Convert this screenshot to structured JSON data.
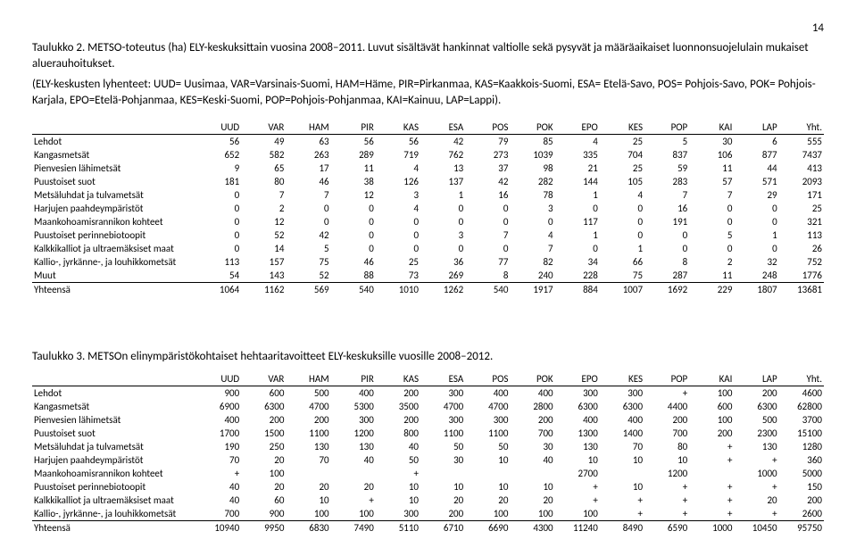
{
  "page_number": "14",
  "caption1": "Taulukko 2. METSO-toteutus (ha) ELY-keskuksittain vuosina 2008–2011. Luvut sisältävät hankinnat valtiolle sekä pysyvät ja määräaikaiset luonnonsuojelulain mukaiset aluerauhoitukset.",
  "explain1": "(ELY-keskusten lyhenteet: UUD= Uusimaa, VAR=Varsinais-Suomi, HAM=Häme, PIR=Pirkanmaa, KAS=Kaakkois-Suomi, ESA= Etelä-Savo, POS= Pohjois-Savo, POK= Pohjois-Karjala, EPO=Etelä-Pohjanmaa, KES=Keski-Suomi, POP=Pohjois-Pohjanmaa, KAI=Kainuu, LAP=Lappi).",
  "headers": [
    "",
    "UUD",
    "VAR",
    "HAM",
    "PIR",
    "KAS",
    "ESA",
    "POS",
    "POK",
    "EPO",
    "KES",
    "POP",
    "KAI",
    "LAP",
    "Yht."
  ],
  "table1_rows": [
    [
      "Lehdot",
      "56",
      "49",
      "63",
      "56",
      "56",
      "42",
      "79",
      "85",
      "4",
      "25",
      "5",
      "30",
      "6",
      "555"
    ],
    [
      "Kangasmetsät",
      "652",
      "582",
      "263",
      "289",
      "719",
      "762",
      "273",
      "1039",
      "335",
      "704",
      "837",
      "106",
      "877",
      "7437"
    ],
    [
      "Pienvesien lähimetsät",
      "9",
      "65",
      "17",
      "11",
      "4",
      "13",
      "37",
      "98",
      "21",
      "25",
      "59",
      "11",
      "44",
      "413"
    ],
    [
      "Puustoiset suot",
      "181",
      "80",
      "46",
      "38",
      "126",
      "137",
      "42",
      "282",
      "144",
      "105",
      "283",
      "57",
      "571",
      "2093"
    ],
    [
      "Metsäluhdat ja tulvametsät",
      "0",
      "7",
      "7",
      "12",
      "3",
      "1",
      "16",
      "78",
      "1",
      "4",
      "7",
      "7",
      "29",
      "171"
    ],
    [
      "Harjujen paahdeympäristöt",
      "0",
      "2",
      "0",
      "0",
      "4",
      "0",
      "0",
      "3",
      "0",
      "0",
      "16",
      "0",
      "0",
      "25"
    ],
    [
      "Maankohoamisrannikon kohteet",
      "0",
      "12",
      "0",
      "0",
      "0",
      "0",
      "0",
      "0",
      "117",
      "0",
      "191",
      "0",
      "0",
      "321"
    ],
    [
      "Puustoiset perinnebiotoopit",
      "0",
      "52",
      "42",
      "0",
      "0",
      "3",
      "7",
      "4",
      "1",
      "0",
      "0",
      "5",
      "1",
      "113"
    ],
    [
      "Kalkkikalliot ja ultraemäksiset maat",
      "0",
      "14",
      "5",
      "0",
      "0",
      "0",
      "0",
      "7",
      "0",
      "1",
      "0",
      "0",
      "0",
      "26"
    ],
    [
      "Kallio-, jyrkänne-, ja louhikkometsät",
      "113",
      "157",
      "75",
      "46",
      "25",
      "36",
      "77",
      "82",
      "34",
      "66",
      "8",
      "2",
      "32",
      "752"
    ],
    [
      "Muut",
      "54",
      "143",
      "52",
      "88",
      "73",
      "269",
      "8",
      "240",
      "228",
      "75",
      "287",
      "11",
      "248",
      "1776"
    ]
  ],
  "table1_total": [
    "Yhteensä",
    "1064",
    "1162",
    "569",
    "540",
    "1010",
    "1262",
    "540",
    "1917",
    "884",
    "1007",
    "1692",
    "229",
    "1807",
    "13681"
  ],
  "caption2": "Taulukko 3. METSOn elinympäristökohtaiset hehtaaritavoitteet ELY-keskuksille vuosille 2008–2012.",
  "table2_rows": [
    [
      "Lehdot",
      "900",
      "600",
      "500",
      "400",
      "200",
      "300",
      "400",
      "400",
      "300",
      "300",
      "+",
      "100",
      "200",
      "4600"
    ],
    [
      "Kangasmetsät",
      "6900",
      "6300",
      "4700",
      "5300",
      "3500",
      "4700",
      "4700",
      "2800",
      "6300",
      "6300",
      "4400",
      "600",
      "6300",
      "62800"
    ],
    [
      "Pienvesien lähimetsät",
      "400",
      "200",
      "200",
      "300",
      "200",
      "300",
      "300",
      "200",
      "400",
      "400",
      "200",
      "100",
      "500",
      "3700"
    ],
    [
      "Puustoiset suot",
      "1700",
      "1500",
      "1100",
      "1200",
      "800",
      "1100",
      "1100",
      "700",
      "1300",
      "1400",
      "700",
      "200",
      "2300",
      "15100"
    ],
    [
      "Metsäluhdat ja tulvametsät",
      "190",
      "250",
      "130",
      "130",
      "40",
      "50",
      "50",
      "30",
      "130",
      "70",
      "80",
      "+",
      "130",
      "1280"
    ],
    [
      "Harjujen paahdeympäristöt",
      "70",
      "20",
      "70",
      "40",
      "50",
      "30",
      "10",
      "40",
      "10",
      "10",
      "10",
      "+",
      "+",
      "360"
    ],
    [
      "Maankohoamisrannikon kohteet",
      "+",
      "100",
      "",
      "",
      "+",
      "",
      "",
      "",
      "2700",
      "",
      "1200",
      "",
      "1000",
      "5000"
    ],
    [
      "Puustoiset perinnebiotoopit",
      "40",
      "20",
      "20",
      "20",
      "10",
      "10",
      "10",
      "10",
      "+",
      "10",
      "+",
      "+",
      "+",
      "150"
    ],
    [
      "Kalkkikalliot ja ultraemäksiset maat",
      "40",
      "60",
      "10",
      "+",
      "10",
      "20",
      "20",
      "20",
      "+",
      "+",
      "+",
      "+",
      "20",
      "200"
    ],
    [
      "Kallio-, jyrkänne-, ja louhikkometsät",
      "700",
      "900",
      "100",
      "100",
      "300",
      "200",
      "100",
      "100",
      "100",
      "+",
      "+",
      "+",
      "+",
      "2600"
    ]
  ],
  "table2_total": [
    "Yhteensä",
    "10940",
    "9950",
    "6830",
    "7490",
    "5110",
    "6710",
    "6690",
    "4300",
    "11240",
    "8490",
    "6590",
    "1000",
    "10450",
    "95750"
  ]
}
